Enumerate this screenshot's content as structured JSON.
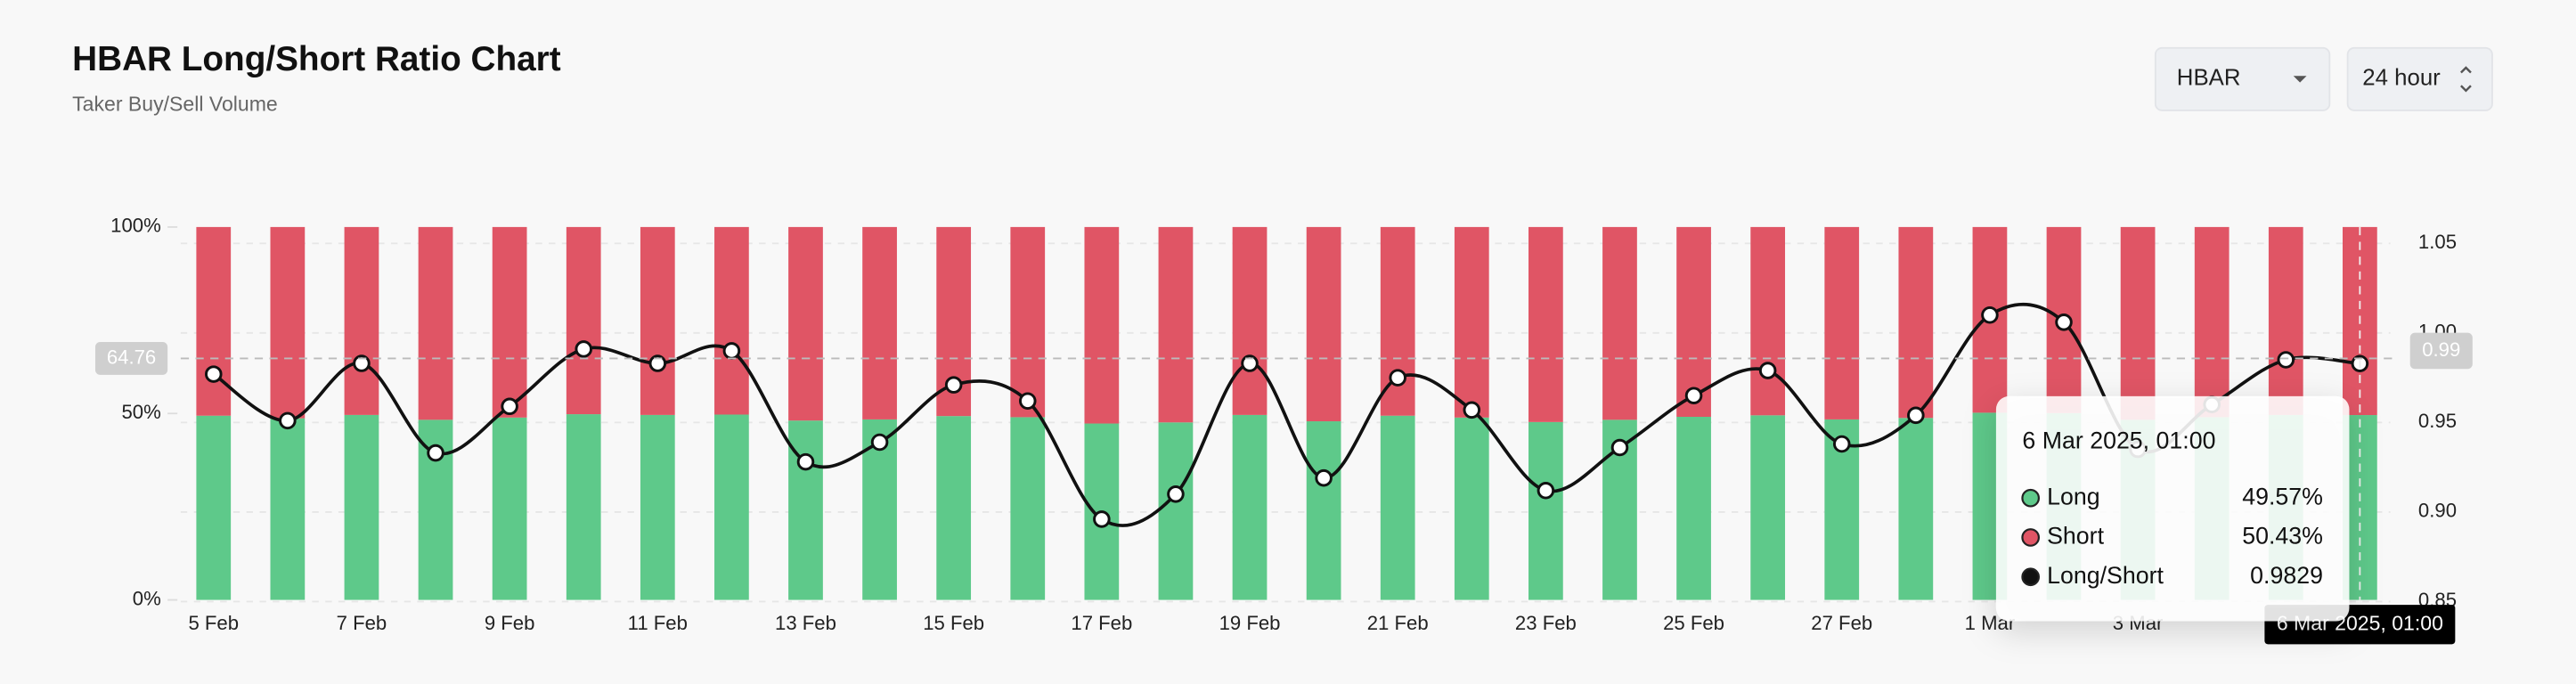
{
  "header": {
    "title": "HBAR Long/Short Ratio Chart",
    "subtitle": "Taker Buy/Sell Volume",
    "symbol_select": "HBAR",
    "period_select": "24 hour"
  },
  "chart_data": {
    "type": "bar-line",
    "categories": [
      "5 Feb",
      null,
      "7 Feb",
      null,
      "9 Feb",
      null,
      "11 Feb",
      null,
      "13 Feb",
      null,
      "15 Feb",
      null,
      "17 Feb",
      null,
      "19 Feb",
      null,
      "21 Feb",
      null,
      "23 Feb",
      null,
      "25 Feb",
      null,
      "27 Feb",
      null,
      "1 Mar",
      null,
      "3 Mar",
      null,
      null,
      null
    ],
    "series": [
      {
        "name": "Long",
        "color": "#5ec98a",
        "values": [
          49.4,
          48.7,
          49.6,
          48.3,
          48.9,
          49.8,
          49.6,
          49.7,
          48.1,
          48.4,
          49.3,
          49.0,
          47.3,
          47.6,
          49.6,
          47.9,
          49.4,
          48.9,
          47.7,
          48.3,
          49.1,
          49.5,
          48.4,
          48.8,
          50.2,
          50.1,
          48.3,
          49.0,
          49.6,
          49.57
        ]
      },
      {
        "name": "Short",
        "color": "#e05565",
        "values": [
          50.6,
          51.3,
          50.4,
          51.7,
          51.1,
          50.2,
          50.4,
          50.3,
          51.9,
          51.6,
          50.7,
          51.0,
          52.7,
          52.4,
          50.4,
          52.1,
          50.6,
          51.1,
          52.3,
          51.7,
          50.9,
          50.5,
          51.6,
          51.2,
          49.8,
          49.9,
          51.7,
          51.0,
          50.4,
          50.43
        ]
      },
      {
        "name": "Long/Short",
        "color": "#111111",
        "axis": "y2",
        "values": [
          0.977,
          0.951,
          0.983,
          0.933,
          0.959,
          0.991,
          0.983,
          0.99,
          0.928,
          0.939,
          0.971,
          0.962,
          0.896,
          0.91,
          0.983,
          0.919,
          0.975,
          0.957,
          0.912,
          0.936,
          0.965,
          0.979,
          0.938,
          0.954,
          1.01,
          1.006,
          0.935,
          0.96,
          0.985,
          0.9829
        ]
      }
    ],
    "ylim": [
      0,
      100
    ],
    "yticks": [
      {
        "value": 0,
        "label": "0%"
      },
      {
        "value": 50,
        "label": "50%"
      },
      {
        "value": 100,
        "label": "100%"
      }
    ],
    "y2lim": [
      0.85,
      1.058
    ],
    "y2ticks": [
      0.85,
      {
        "value": 0.9,
        "label": "0.90"
      },
      0.95,
      {
        "value": 1,
        "label": "1.00"
      },
      1.05
    ],
    "grid": true,
    "crosshair": {
      "index": 29,
      "y_value": 64.76,
      "y2_value": 0.99,
      "x_label": "6 Mar 2025, 01:00"
    },
    "tooltip": {
      "title": "6 Mar 2025, 01:00",
      "items": [
        {
          "name": "Long",
          "value_label": "49.57%"
        },
        {
          "name": "Short",
          "value_label": "50.43%"
        },
        {
          "name": "Long/Short",
          "value_label": "0.9829"
        }
      ]
    }
  }
}
